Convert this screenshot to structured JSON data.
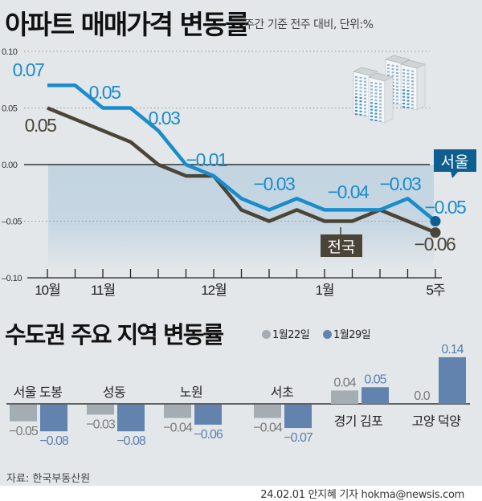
{
  "header": {
    "title": "아파트 매매가격 변동률",
    "subtitle": "주간 기준 전주 대비, 단위:%"
  },
  "colors": {
    "seoul": "#1a8ccc",
    "national": "#4b4538",
    "seoul_dot": "#0e5f8f",
    "bar_prev": "#a3adb2",
    "bar_curr": "#6283ad",
    "label_prev": "#7a7a7a",
    "label_curr": "#5a7fae"
  },
  "chart_data": [
    {
      "type": "line",
      "title": "아파트 매매가격 변동률",
      "subtitle": "주간 기준 전주 대비, 단위:%",
      "ylim": [
        -0.1,
        0.1
      ],
      "yticks": [
        "0.10",
        "0.05",
        "0.00",
        "-0.05",
        "-0.10"
      ],
      "ytick_values": [
        0.1,
        0.05,
        0.0,
        -0.05,
        -0.1
      ],
      "xtick_labels": [
        {
          "index": 0,
          "label": "10월"
        },
        {
          "index": 2,
          "label": "11월"
        },
        {
          "index": 6,
          "label": "12월"
        },
        {
          "index": 10,
          "label": "1월"
        },
        {
          "index": 14,
          "label": "5주"
        }
      ],
      "n_points": 15,
      "grid": true,
      "series": [
        {
          "name": "서울",
          "values": [
            0.07,
            0.07,
            0.05,
            0.05,
            0.03,
            0.0,
            -0.01,
            -0.03,
            -0.04,
            -0.03,
            -0.04,
            -0.04,
            -0.04,
            -0.03,
            -0.05
          ],
          "annotations": [
            {
              "index": 0,
              "text": "0.07"
            },
            {
              "index": 2,
              "text": "0.05"
            },
            {
              "index": 4,
              "text": "0.03"
            },
            {
              "index": 6,
              "text": "−0.01"
            },
            {
              "index": 9,
              "text": "−0.03"
            },
            {
              "index": 11,
              "text": "−0.04"
            },
            {
              "index": 13,
              "text": "−0.03"
            },
            {
              "index": 14,
              "text": "−0.05"
            }
          ]
        },
        {
          "name": "전국",
          "values": [
            0.05,
            0.04,
            0.03,
            0.02,
            0.0,
            -0.01,
            -0.01,
            -0.04,
            -0.05,
            -0.04,
            -0.05,
            -0.05,
            -0.04,
            -0.05,
            -0.06
          ],
          "annotations": [
            {
              "index": 0,
              "text": "0.05"
            },
            {
              "index": 14,
              "text": "−0.06"
            }
          ]
        }
      ]
    },
    {
      "type": "bar",
      "title": "수도권 주요 지역 변동률",
      "legend": [
        "1월22일",
        "1월29일"
      ],
      "categories": [
        "서울 도봉",
        "성동",
        "노원",
        "서초",
        "경기 김포",
        "고양 덕양"
      ],
      "series": [
        {
          "name": "1월22일",
          "values": [
            -0.05,
            -0.03,
            -0.04,
            -0.04,
            0.04,
            0.0
          ],
          "labels": [
            "−0.05",
            "−0.03",
            "−0.04",
            "−0.04",
            "0.04",
            "0.0"
          ]
        },
        {
          "name": "1월29일",
          "values": [
            -0.08,
            -0.08,
            -0.06,
            -0.07,
            0.05,
            0.14
          ],
          "labels": [
            "−0.08",
            "−0.08",
            "−0.06",
            "−0.07",
            "0.05",
            "0.14"
          ]
        }
      ]
    }
  ],
  "footer": {
    "source": "자료: 한국부동산원",
    "credit": "24.02.01 안지혜 기자 hokma@newsis.com"
  }
}
